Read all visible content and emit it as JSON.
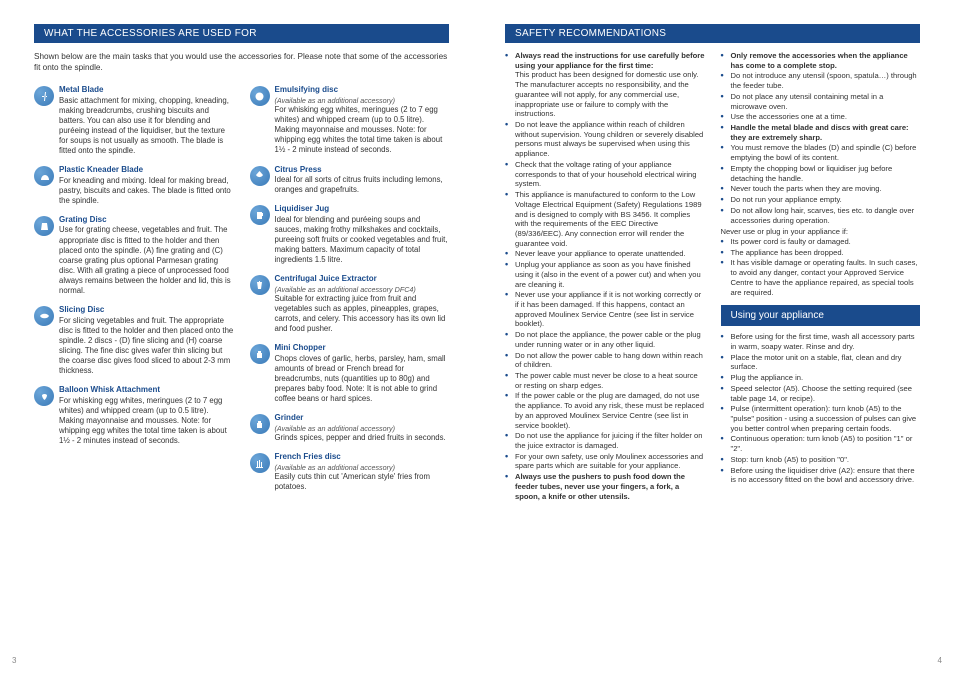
{
  "colors": {
    "brand": "#1a4b8c",
    "iconGrad1": "#6ba5d8",
    "iconGrad2": "#3a7ab8",
    "text": "#333"
  },
  "pageLeft": {
    "header": "WHAT THE ACCESSORIES ARE USED FOR",
    "intro": "Shown below are the main tasks that you would use the accessories for. Please note that some of the accessories fit onto the spindle.",
    "col1": [
      {
        "icon": "blade-icon",
        "title": "Metal Blade",
        "desc": "Basic attachment for mixing, chopping, kneading, making breadcrumbs, crushing biscuits and batters. You can also use it for blending and puréeing instead of the liquidiser, but the texture for soups is not usually as smooth. The blade is fitted onto the spindle."
      },
      {
        "icon": "kneader-icon",
        "title": "Plastic Kneader Blade",
        "desc": "For kneading and mixing. Ideal for making bread, pastry, biscuits and cakes. The blade is fitted onto the spindle."
      },
      {
        "icon": "grater-icon",
        "title": "Grating Disc",
        "desc": "Use for grating cheese, vegetables and fruit. The appropriate disc is fitted to the holder and then placed onto the spindle. (A) fine grating and (C) coarse grating plus optional Parmesan grating disc. With all grating a piece of unprocessed food always remains between the holder and lid, this is normal."
      },
      {
        "icon": "slicer-icon",
        "title": "Slicing Disc",
        "desc": "For slicing vegetables and fruit. The appropriate disc is fitted to the holder and then placed onto the spindle. 2 discs - (D) fine slicing and (H) coarse slicing. The fine disc gives wafer thin slicing but the coarse disc gives food sliced to about 2-3 mm thickness."
      },
      {
        "icon": "whisk-icon",
        "title": "Balloon Whisk Attachment",
        "desc": "For whisking egg whites, meringues (2 to 7 egg whites) and whipped cream (up to 0.5 litre). Making mayonnaise and mousses. Note: for whipping egg whites the total time taken is about 1½ - 2 minutes instead of seconds."
      }
    ],
    "col2": [
      {
        "icon": "emulsify-icon",
        "title": "Emulsifying disc",
        "avail": "(Available as an additional accessory)",
        "desc": "For whisking egg whites, meringues (2 to 7 egg whites) and whipped cream (up to 0.5 litre). Making mayonnaise and mousses. Note: for whipping egg whites the total time taken is about 1½ - 2 minute instead of seconds."
      },
      {
        "icon": "citrus-icon",
        "title": "Citrus Press",
        "desc": "Ideal for all sorts of citrus fruits including lemons, oranges and grapefruits."
      },
      {
        "icon": "jug-icon",
        "title": "Liquidiser Jug",
        "desc": "Ideal for blending and puréeing soups and sauces, making frothy milkshakes and cocktails, pureeing soft fruits or cooked vegetables and fruit, making batters. Maximum capacity of total ingredients 1.5 litre."
      },
      {
        "icon": "juice-icon",
        "title": "Centrifugal Juice Extractor",
        "avail": "(Available as an additional accessory DFC4)",
        "desc": "Suitable for extracting juice from fruit and vegetables such as apples, pineapples, grapes, carrots, and celery. This accessory has its own lid and food pusher."
      },
      {
        "icon": "chopper-icon",
        "title": "Mini Chopper",
        "desc": "Chops cloves of garlic, herbs, parsley, ham, small amounts of bread or French bread for breadcrumbs, nuts (quantities up to 80g) and prepares baby food. Note: It is not able to grind coffee beans or hard spices."
      },
      {
        "icon": "grinder-icon",
        "title": "Grinder",
        "avail": "(Available as an additional accessory)",
        "desc": "Grinds spices, pepper and dried fruits in seconds."
      },
      {
        "icon": "fries-icon",
        "title": "French Fries disc",
        "avail": "(Available as an additional accessory)",
        "desc": "Easily cuts thin cut 'American style' fries from potatoes."
      }
    ],
    "pageNum": "3"
  },
  "pageRight": {
    "header": "SAFETY RECOMMENDATIONS",
    "safetyCol1": [
      {
        "bold": true,
        "text": "Always read the instructions for use carefully before using your appliance for the first time:",
        "after": "This product has been designed for domestic use only. The manufacturer accepts no responsibility, and the guarantee will not apply, for any commercial use, inappropriate use or failure to comply with the instructions."
      },
      {
        "text": "Do not leave the appliance within reach of children without supervision. Young children or severely disabled persons must always be supervised when using this appliance."
      },
      {
        "text": "Check that the voltage rating of your appliance corresponds to that of your household electrical wiring system."
      },
      {
        "text": "This appliance is manufactured to conform to the Low Voltage Electrical Equipment (Safety) Regulations 1989 and is designed to comply with BS 3456. It complies with the requirements of the EEC Directive (89/336/EEC). Any connection error will render the guarantee void."
      },
      {
        "text": "Never leave your appliance to operate unattended."
      },
      {
        "text": "Unplug your appliance as soon as you have finished using it (also in the event of a power cut) and when you are cleaning it."
      },
      {
        "text": "Never use your appliance if it is not working correctly or if it has been damaged. If this happens, contact an approved Moulinex Service Centre (see list in service booklet)."
      },
      {
        "text": "Do not place the appliance, the power cable or the plug under running water or in any other liquid."
      },
      {
        "text": "Do not allow the power cable to hang down within reach of children."
      },
      {
        "text": "The power cable must never be close to a heat source or resting on sharp edges."
      },
      {
        "text": "If the power cable or the plug are damaged, do not use the appliance. To avoid any risk, these must be replaced by an approved Moulinex Service Centre (see list in service booklet)."
      },
      {
        "text": "Do not use the appliance for juicing if the filter holder on the juice extractor is damaged."
      },
      {
        "text": "For your own safety, use only Moulinex accessories and spare parts which are suitable for your appliance."
      },
      {
        "bold": true,
        "text": "Always use the pushers to push food down the feeder tubes, never use your fingers, a fork, a spoon, a knife or other utensils."
      }
    ],
    "safetyCol2": [
      {
        "bold": true,
        "text": "Only remove the accessories when the appliance has come to a complete stop."
      },
      {
        "text": "Do not introduce any utensil (spoon, spatula…) through the feeder tube."
      },
      {
        "text": "Do not place any utensil containing metal in a microwave oven."
      },
      {
        "text": "Use the accessories one at a time."
      },
      {
        "bold": true,
        "text": "Handle the metal blade and discs with great care: they are extremely sharp."
      },
      {
        "text": "You must remove the blades (D) and spindle (C) before emptying the bowl of its content."
      },
      {
        "text": "Empty the chopping bowl or liquidiser jug before detaching the handle."
      },
      {
        "text": "Never touch the parts when they are moving."
      },
      {
        "text": "Do not run your appliance empty."
      },
      {
        "text": "Do not allow long hair, scarves, ties etc. to dangle over accessories during operation."
      }
    ],
    "neverUse": "Never use or plug in your appliance if:",
    "neverList": [
      "Its power cord is faulty or damaged.",
      "The appliance has been dropped.",
      "It has visible damage or operating faults. In such cases, to avoid any danger, contact your Approved Service Centre to have the appliance repaired, as special tools are required."
    ],
    "usingHeader": "Using your appliance",
    "usingList": [
      "Before using for the first time, wash all accessory parts in warm, soapy water. Rinse and dry.",
      "Place the motor unit on a stable, flat, clean and dry surface.",
      "Plug the appliance in.",
      "Speed selector (A5). Choose the setting required (see table page 14, or recipe).",
      "Pulse (intermittent operation): turn knob (A5) to the \"pulse\" position - using a succession of pulses can give you better control when preparing certain foods.",
      "Continuous operation: turn knob (A5) to position \"1\" or \"2\".",
      "Stop: turn knob (A5) to position \"0\".",
      "Before using the liquidiser drive (A2): ensure that there is no accessory fitted on the bowl and accessory drive."
    ],
    "pageNum": "4"
  }
}
